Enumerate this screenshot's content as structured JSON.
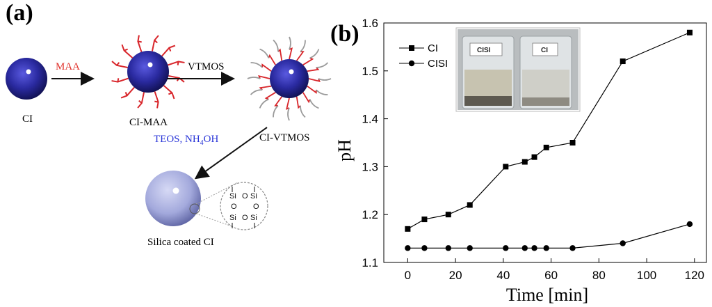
{
  "panel_a": {
    "label": "(a)",
    "labels": {
      "ci": "CI",
      "ci_maa": "CI-MAA",
      "ci_vtmos": "CI-VTMOS",
      "silica": "Silica coated CI",
      "step1": "MAA",
      "step2": "VTMOS",
      "step3_main": "TEOS, NH",
      "step3_sub": "4",
      "step3_end": "OH"
    },
    "structure_text": [
      "Si",
      "O",
      "Si",
      "O",
      "O",
      "Si",
      "O",
      "Si"
    ],
    "colors": {
      "particle": "#2a2aa0",
      "red_chain": "#d8252a",
      "gray_chain": "#9a9a9a",
      "silica": "#a8aee0",
      "step_red": "#e0302a",
      "step_blue": "#2a36d8"
    }
  },
  "panel_b": {
    "label": "(b)",
    "photo_labels": {
      "left": "CISI",
      "right": "CI"
    }
  },
  "chart_data": {
    "type": "line",
    "title": "",
    "xlabel": "Time [min]",
    "ylabel": "pH",
    "xlim": [
      -10,
      125
    ],
    "ylim": [
      1.1,
      1.6
    ],
    "xticks": [
      0,
      20,
      40,
      60,
      80,
      100,
      120
    ],
    "yticks": [
      1.1,
      1.2,
      1.3,
      1.4,
      1.5,
      1.6
    ],
    "legend_position": "top-left",
    "series": [
      {
        "name": "CI",
        "marker": "square",
        "x": [
          0,
          7,
          17,
          26,
          41,
          49,
          53,
          58,
          69,
          90,
          118
        ],
        "y": [
          1.17,
          1.19,
          1.2,
          1.22,
          1.3,
          1.31,
          1.32,
          1.34,
          1.35,
          1.52,
          1.58
        ]
      },
      {
        "name": "CISI",
        "marker": "circle",
        "x": [
          0,
          7,
          17,
          26,
          41,
          49,
          53,
          58,
          69,
          90,
          118
        ],
        "y": [
          1.13,
          1.13,
          1.13,
          1.13,
          1.13,
          1.13,
          1.13,
          1.13,
          1.13,
          1.14,
          1.18
        ]
      }
    ]
  }
}
